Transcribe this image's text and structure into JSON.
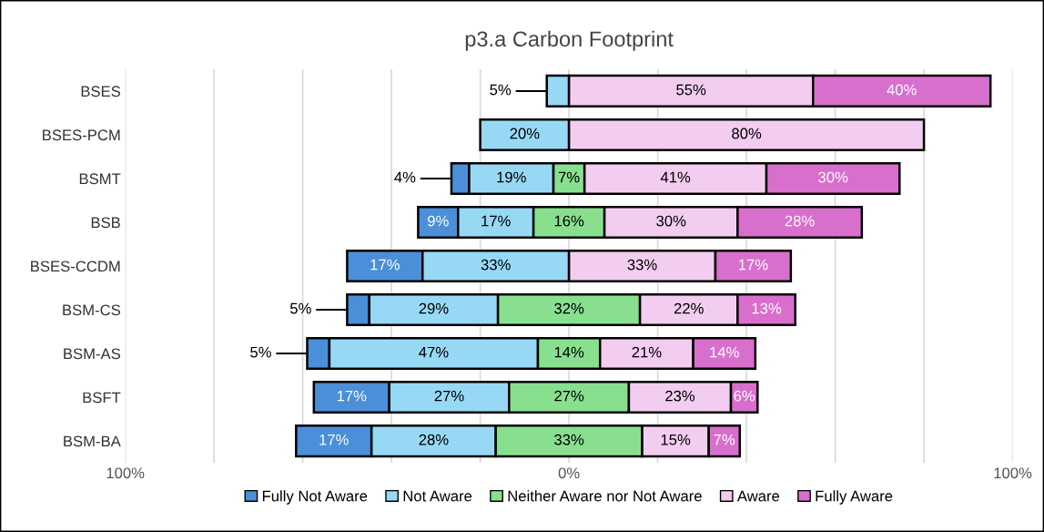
{
  "chart_data": {
    "type": "bar",
    "title": "p3.a Carbon Footprint",
    "orientation": "horizontal",
    "categories": [
      "BSES",
      "BSES-PCM",
      "BSMT",
      "BSB",
      "BSES-CCDM",
      "BSM-CS",
      "BSM-AS",
      "BSFT",
      "BSM-BA"
    ],
    "xlim": [
      -100,
      100
    ],
    "xticks": [
      {
        "value": -100,
        "label": "100%"
      },
      {
        "value": -80,
        "label": null
      },
      {
        "value": -60,
        "label": null
      },
      {
        "value": -40,
        "label": null
      },
      {
        "value": -20,
        "label": null
      },
      {
        "value": 0,
        "label": "0%"
      },
      {
        "value": 20,
        "label": null
      },
      {
        "value": 40,
        "label": null
      },
      {
        "value": 60,
        "label": null
      },
      {
        "value": 80,
        "label": null
      },
      {
        "value": 100,
        "label": "100%"
      }
    ],
    "grid": "x",
    "legend": "bottom",
    "tick_labels": "x",
    "series": [
      {
        "name": "Fully Not Aware",
        "color": "#4a8fd8",
        "values": [
          null,
          null,
          4,
          9,
          17,
          5,
          5,
          17,
          17
        ],
        "base": [
          null,
          null,
          -26.5,
          -34,
          -50,
          -50,
          -59,
          -57.5,
          -61.5
        ],
        "value_labels": [
          null,
          null,
          "4%",
          "9%",
          "17%",
          "5%",
          "5%",
          "17%",
          "17%"
        ]
      },
      {
        "name": "Not Aware",
        "color": "#97d9f5",
        "values": [
          5,
          20,
          19,
          17,
          33,
          29,
          47,
          27,
          28
        ],
        "base": [
          -5,
          -20,
          -22.5,
          -25,
          -33,
          -45,
          -54,
          -40.5,
          -44.5
        ],
        "value_labels": [
          "5%",
          "20%",
          "19%",
          "17%",
          "33%",
          "29%",
          "47%",
          "27%",
          "28%"
        ]
      },
      {
        "name": "Neither Aware nor Not Aware",
        "color": "#88e08f",
        "values": [
          null,
          null,
          7,
          16,
          null,
          32,
          14,
          27,
          33
        ],
        "base": [
          null,
          null,
          -3.5,
          -8,
          null,
          -16,
          -7,
          -13.5,
          -16.5
        ],
        "value_labels": [
          null,
          null,
          "7%",
          "16%",
          null,
          "32%",
          "14%",
          "27%",
          "33%"
        ]
      },
      {
        "name": "Aware",
        "color": "#f3cdef",
        "values": [
          55,
          80,
          41,
          30,
          33,
          22,
          21,
          23,
          15
        ],
        "base": [
          0,
          0,
          3.5,
          8,
          0,
          16,
          7,
          13.5,
          16.5
        ],
        "value_labels": [
          "55%",
          "80%",
          "41%",
          "30%",
          "33%",
          "22%",
          "21%",
          "23%",
          "15%"
        ]
      },
      {
        "name": "Fully Aware",
        "color": "#d96fcd",
        "values": [
          40,
          null,
          30,
          28,
          17,
          13,
          14,
          6,
          7
        ],
        "base": [
          55,
          null,
          44.5,
          38,
          33,
          38,
          28,
          36.5,
          31.5
        ],
        "value_labels": [
          "40%",
          null,
          "30%",
          "28%",
          "17%",
          "13%",
          "14%",
          "6%",
          "7%"
        ]
      }
    ]
  }
}
